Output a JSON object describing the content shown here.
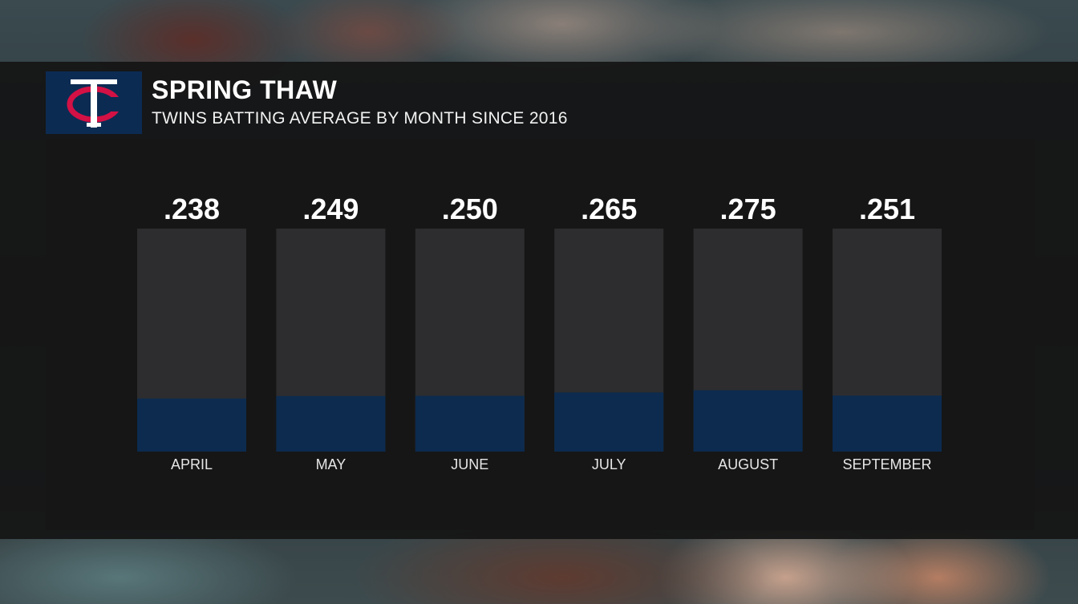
{
  "header": {
    "title": "SPRING THAW",
    "subtitle": "TWINS BATTING AVERAGE BY MONTH SINCE 2016",
    "logo_icon": "minnesota-twins-tc-logo"
  },
  "colors": {
    "bar_fill": "#0c2b4f",
    "bar_track": "#2d2d2f",
    "logo_bg": "#0c2b53",
    "logo_red": "#d31145"
  },
  "chart_data": {
    "type": "bar",
    "title": "SPRING THAW",
    "subtitle": "TWINS BATTING AVERAGE BY MONTH SINCE 2016",
    "categories": [
      "APRIL",
      "MAY",
      "JUNE",
      "JULY",
      "AUGUST",
      "SEPTEMBER"
    ],
    "values": [
      0.238,
      0.249,
      0.25,
      0.265,
      0.275,
      0.251
    ],
    "value_labels": [
      ".238",
      ".249",
      ".250",
      ".265",
      ".275",
      ".251"
    ],
    "xlabel": "",
    "ylabel": "",
    "ylim": [
      0,
      1
    ],
    "grid": false,
    "legend": "none"
  }
}
